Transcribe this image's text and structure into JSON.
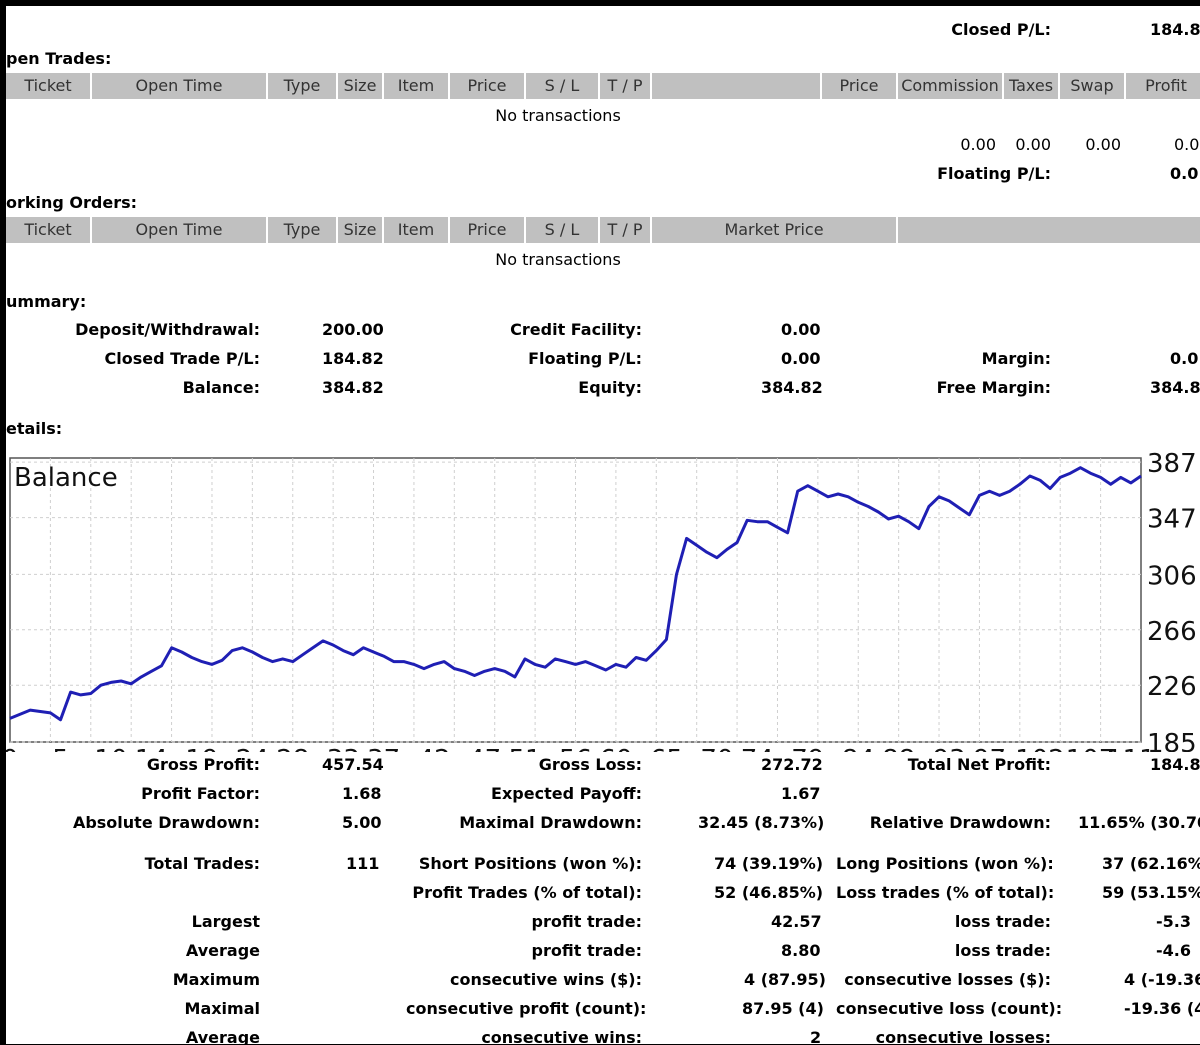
{
  "closed_pl": {
    "label": "Closed P/L:",
    "value": "184.8"
  },
  "open_trades": {
    "title": "pen Trades:",
    "columns": [
      "Ticket",
      "Open Time",
      "Type",
      "Size",
      "Item",
      "Price",
      "S / L",
      "T / P",
      "",
      "Price",
      "Commission",
      "Taxes",
      "Swap",
      "Profit"
    ],
    "empty": "No transactions",
    "totals": {
      "commission": "0.00",
      "taxes": "0.00",
      "swap": "0.00",
      "profit": "0.0"
    },
    "floating_label": "Floating P/L:",
    "floating_value": "0.0"
  },
  "working_orders": {
    "title": "orking Orders:",
    "columns": [
      "Ticket",
      "Open Time",
      "Type",
      "Size",
      "Item",
      "Price",
      "S / L",
      "T / P",
      "Market Price",
      ""
    ],
    "empty": "No transactions"
  },
  "summary": {
    "title": "ummary:",
    "deposit_label": "Deposit/Withdrawal:",
    "deposit_value": "200.00",
    "credit_label": "Credit Facility:",
    "credit_value": "0.00",
    "closed_trade_label": "Closed Trade P/L:",
    "closed_trade_value": "184.82",
    "floating_label": "Floating P/L:",
    "floating_value": "0.00",
    "margin_label": "Margin:",
    "margin_value": "0.0",
    "balance_label": "Balance:",
    "balance_value": "384.82",
    "equity_label": "Equity:",
    "equity_value": "384.82",
    "free_margin_label": "Free Margin:",
    "free_margin_value": "384.8"
  },
  "details": {
    "title": "etails:"
  },
  "chart_data": {
    "type": "line",
    "title": "Balance",
    "series": [
      {
        "values": [
          [
            0,
            202
          ],
          [
            2,
            208
          ],
          [
            4,
            206
          ],
          [
            5,
            201
          ],
          [
            6,
            221
          ],
          [
            7,
            219
          ],
          [
            8,
            220
          ],
          [
            9,
            226
          ],
          [
            10,
            228
          ],
          [
            11,
            229
          ],
          [
            12,
            227
          ],
          [
            13,
            232
          ],
          [
            14,
            236
          ],
          [
            15,
            240
          ],
          [
            16,
            253
          ],
          [
            17,
            250
          ],
          [
            18,
            246
          ],
          [
            19,
            243
          ],
          [
            20,
            241
          ],
          [
            21,
            244
          ],
          [
            22,
            251
          ],
          [
            23,
            253
          ],
          [
            24,
            250
          ],
          [
            25,
            246
          ],
          [
            26,
            243
          ],
          [
            27,
            245
          ],
          [
            28,
            243
          ],
          [
            29,
            248
          ],
          [
            30,
            253
          ],
          [
            31,
            258
          ],
          [
            32,
            255
          ],
          [
            33,
            251
          ],
          [
            34,
            248
          ],
          [
            35,
            253
          ],
          [
            36,
            250
          ],
          [
            37,
            247
          ],
          [
            38,
            243
          ],
          [
            39,
            243
          ],
          [
            40,
            241
          ],
          [
            41,
            238
          ],
          [
            42,
            241
          ],
          [
            43,
            243
          ],
          [
            44,
            238
          ],
          [
            45,
            236
          ],
          [
            46,
            233
          ],
          [
            47,
            236
          ],
          [
            48,
            238
          ],
          [
            49,
            236
          ],
          [
            50,
            232
          ],
          [
            51,
            245
          ],
          [
            52,
            241
          ],
          [
            53,
            239
          ],
          [
            54,
            245
          ],
          [
            55,
            243
          ],
          [
            56,
            241
          ],
          [
            57,
            243
          ],
          [
            58,
            240
          ],
          [
            59,
            237
          ],
          [
            60,
            241
          ],
          [
            61,
            239
          ],
          [
            62,
            246
          ],
          [
            63,
            244
          ],
          [
            64,
            251
          ],
          [
            65,
            259
          ],
          [
            66,
            306
          ],
          [
            67,
            332
          ],
          [
            68,
            327
          ],
          [
            69,
            322
          ],
          [
            70,
            318
          ],
          [
            71,
            324
          ],
          [
            72,
            329
          ],
          [
            73,
            345
          ],
          [
            74,
            344
          ],
          [
            75,
            344
          ],
          [
            76,
            340
          ],
          [
            77,
            336
          ],
          [
            78,
            366
          ],
          [
            79,
            370
          ],
          [
            80,
            366
          ],
          [
            81,
            362
          ],
          [
            82,
            364
          ],
          [
            83,
            362
          ],
          [
            84,
            358
          ],
          [
            85,
            355
          ],
          [
            86,
            351
          ],
          [
            87,
            346
          ],
          [
            88,
            348
          ],
          [
            89,
            344
          ],
          [
            90,
            339
          ],
          [
            91,
            355
          ],
          [
            92,
            362
          ],
          [
            93,
            359
          ],
          [
            94,
            354
          ],
          [
            95,
            349
          ],
          [
            96,
            363
          ],
          [
            97,
            366
          ],
          [
            98,
            363
          ],
          [
            99,
            366
          ],
          [
            100,
            371
          ],
          [
            101,
            377
          ],
          [
            102,
            374
          ],
          [
            103,
            368
          ],
          [
            104,
            376
          ],
          [
            105,
            379
          ],
          [
            106,
            383
          ],
          [
            107,
            379
          ],
          [
            108,
            376
          ],
          [
            109,
            371
          ],
          [
            110,
            376
          ],
          [
            111,
            372
          ],
          [
            112,
            377
          ]
        ]
      }
    ],
    "xticks": [
      "0",
      "5",
      "10",
      "14",
      "19",
      "24",
      "28",
      "33",
      "37",
      "42",
      "47",
      "51",
      "56",
      "60",
      "65",
      "70",
      "74",
      "79",
      "84",
      "88",
      "93",
      "97",
      "102",
      "107",
      "111"
    ],
    "xtick_values": [
      0,
      5,
      10,
      14,
      19,
      24,
      28,
      33,
      37,
      42,
      47,
      51,
      56,
      60,
      65,
      70,
      74,
      79,
      84,
      88,
      93,
      97,
      102,
      107,
      111
    ],
    "yticks": [
      "387",
      "347",
      "306",
      "266",
      "226",
      "185"
    ],
    "ytick_values": [
      387,
      347,
      306,
      266,
      226,
      185
    ],
    "xlim": [
      0,
      112
    ],
    "ylim": [
      185,
      390
    ],
    "grid": true,
    "color": "#1f1fb4"
  },
  "stats": {
    "gross_profit_label": "Gross Profit:",
    "gross_profit": "457.54",
    "gross_loss_label": "Gross Loss:",
    "gross_loss": "272.72",
    "total_net_label": "Total Net Profit:",
    "total_net": "184.8",
    "profit_factor_label": "Profit Factor:",
    "profit_factor": "1.68",
    "expected_payoff_label": "Expected Payoff:",
    "expected_payoff": "1.67",
    "abs_dd_label": "Absolute Drawdown:",
    "abs_dd": "5.00",
    "max_dd_label": "Maximal Drawdown:",
    "max_dd": "32.45 (8.73%)",
    "rel_dd_label": "Relative Drawdown:",
    "rel_dd": "11.65% (30.70",
    "total_trades_label": "Total Trades:",
    "total_trades": "111",
    "short_label": "Short Positions (won %):",
    "short": "74 (39.19%)",
    "long_label": "Long Positions (won %):",
    "long": "37 (62.16%",
    "profit_trades_label": "Profit Trades (% of total):",
    "profit_trades": "52 (46.85%)",
    "loss_trades_label": "Loss trades (% of total):",
    "loss_trades": "59 (53.15%",
    "largest_label": "Largest",
    "largest_profit_label": "profit trade:",
    "largest_profit": "42.57",
    "largest_loss_label": "loss trade:",
    "largest_loss": "-5.3",
    "average_label": "Average",
    "average_profit_label": "profit trade:",
    "average_profit": "8.80",
    "average_loss_label": "loss trade:",
    "average_loss": "-4.6",
    "maximum_label": "Maximum",
    "max_wins_label": "consecutive wins ($):",
    "max_wins": "4 (87.95)",
    "max_losses_label": "consecutive losses ($):",
    "max_losses": "4 (-19.36",
    "maximal_label": "Maximal",
    "maximal_profit_label": "consecutive profit (count):",
    "maximal_profit": "87.95 (4)",
    "maximal_loss_label": "consecutive loss (count):",
    "maximal_loss": "-19.36 (4",
    "average2_label": "Average",
    "avg_wins_label": "consecutive wins:",
    "avg_wins": "2",
    "avg_losses_label": "consecutive losses:"
  }
}
